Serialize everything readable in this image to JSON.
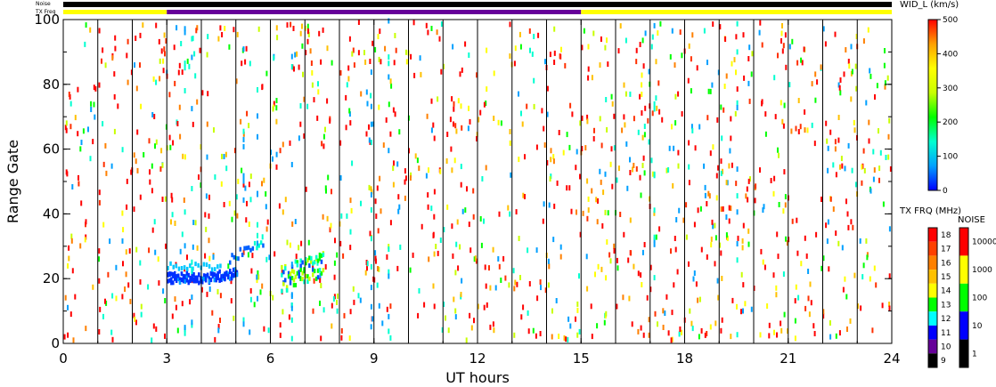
{
  "chart_data": {
    "type": "heatmap",
    "xlabel": "UT hours",
    "ylabel": "Range Gate",
    "xlim": [
      0,
      24
    ],
    "ylim": [
      0,
      100
    ],
    "x_ticks": [
      0,
      3,
      6,
      9,
      12,
      15,
      18,
      21,
      24
    ],
    "y_ticks": [
      0,
      20,
      40,
      60,
      80,
      100
    ],
    "scan_boundaries_hours": [
      1,
      2,
      3,
      4,
      5,
      6,
      7,
      8,
      9,
      10,
      11,
      12,
      13,
      14,
      15,
      16,
      17,
      18,
      19,
      20,
      21,
      22,
      23
    ],
    "top_strip_labels": {
      "noise": "Noise",
      "txfreq": "TX Freq"
    },
    "top_strip": {
      "noise_color": "#000000",
      "txfreq_segments": [
        {
          "start": 0,
          "end": 3,
          "color": "#ffff00"
        },
        {
          "start": 3,
          "end": 15,
          "color": "#660099"
        },
        {
          "start": 15,
          "end": 24,
          "color": "#ffff00"
        }
      ]
    },
    "width_colorbar": {
      "title": "WID_L (km/s)",
      "ticks": [
        "0",
        "100",
        "200",
        "300",
        "400",
        "500"
      ],
      "range": [
        0,
        500
      ],
      "stops": [
        "#0000ff",
        "#00a0ff",
        "#00ffd0",
        "#00ff00",
        "#c8ff00",
        "#ffff00",
        "#ffa000",
        "#ff0000"
      ]
    },
    "txfreq_legend": {
      "title": "TX FRQ (MHz)",
      "labels": [
        "18",
        "17",
        "16",
        "15",
        "14",
        "13",
        "12",
        "11",
        "10",
        "9"
      ],
      "colors": [
        "#ff0000",
        "#ff4000",
        "#ff8000",
        "#ffc000",
        "#ffff00",
        "#00ff00",
        "#00ffff",
        "#0000ff",
        "#660099",
        "#000000"
      ]
    },
    "noise_legend": {
      "title": "NOISE",
      "labels": [
        "10000",
        "1000",
        "100",
        "10",
        "1"
      ],
      "colors": [
        "#ff0000",
        "#ffff00",
        "#00ff00",
        "#0000ff",
        "#000000"
      ]
    },
    "scatter_density": "sparse"
  }
}
